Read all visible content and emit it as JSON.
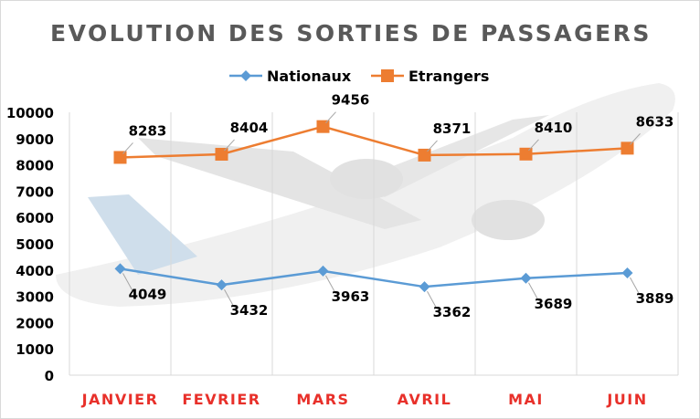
{
  "chart_data": {
    "type": "line",
    "title": "EVOLUTION DES SORTIES DE PASSAGERS",
    "categories": [
      "JANVIER",
      "FEVRIER",
      "MARS",
      "AVRIL",
      "MAI",
      "JUIN"
    ],
    "series": [
      {
        "name": "Nationaux",
        "values": [
          4049,
          3432,
          3963,
          3362,
          3689,
          3889
        ],
        "color": "#5b9bd5",
        "marker": "diamond"
      },
      {
        "name": "Etrangers",
        "values": [
          8283,
          8404,
          9456,
          8371,
          8410,
          8633
        ],
        "color": "#ed7d31",
        "marker": "square"
      }
    ],
    "yticks": [
      0,
      1000,
      2000,
      3000,
      4000,
      5000,
      6000,
      7000,
      8000,
      9000,
      10000
    ],
    "ylim": [
      0,
      10000
    ],
    "xlabel": "",
    "ylabel": "",
    "legend": "top",
    "category_color": "#e8302a",
    "grid": "vertical"
  }
}
